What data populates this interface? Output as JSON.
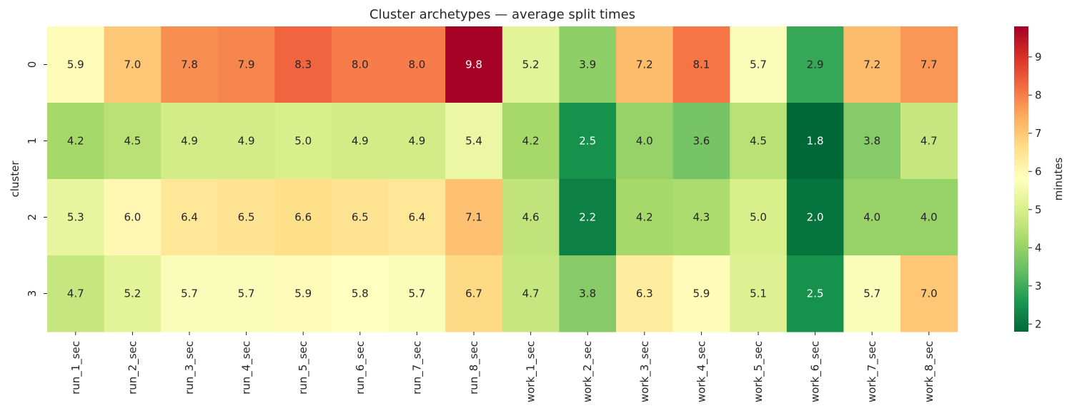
{
  "chart_data": {
    "type": "heatmap",
    "title": "Cluster archetypes — average split times",
    "xlabel": "",
    "ylabel": "cluster",
    "x_categories": [
      "run_1_sec",
      "run_2_sec",
      "run_3_sec",
      "run_4_sec",
      "run_5_sec",
      "run_6_sec",
      "run_7_sec",
      "run_8_sec",
      "work_1_sec",
      "work_2_sec",
      "work_3_sec",
      "work_4_sec",
      "work_5_sec",
      "work_6_sec",
      "work_7_sec",
      "work_8_sec"
    ],
    "y_categories": [
      "0",
      "1",
      "2",
      "3"
    ],
    "values": [
      [
        5.9,
        7.0,
        7.8,
        7.9,
        8.3,
        8.0,
        8.0,
        9.8,
        5.2,
        3.9,
        7.2,
        8.1,
        5.7,
        2.9,
        7.2,
        7.7
      ],
      [
        4.2,
        4.5,
        4.9,
        4.9,
        5.0,
        4.9,
        4.9,
        5.4,
        4.2,
        2.5,
        4.0,
        3.6,
        4.5,
        1.8,
        3.8,
        4.7
      ],
      [
        5.3,
        6.0,
        6.4,
        6.5,
        6.6,
        6.5,
        6.4,
        7.1,
        4.6,
        2.2,
        4.2,
        4.3,
        5.0,
        2.0,
        4.0,
        4.0
      ],
      [
        4.7,
        5.2,
        5.7,
        5.7,
        5.9,
        5.8,
        5.7,
        6.7,
        4.7,
        3.8,
        6.3,
        5.9,
        5.1,
        2.5,
        5.7,
        7.0
      ]
    ],
    "colormap": "RdYlGn_r",
    "vmin": 1.8,
    "vmax": 9.8,
    "colorbar": {
      "label": "minutes",
      "ticks": [
        2,
        3,
        4,
        5,
        6,
        7,
        8,
        9
      ]
    }
  }
}
